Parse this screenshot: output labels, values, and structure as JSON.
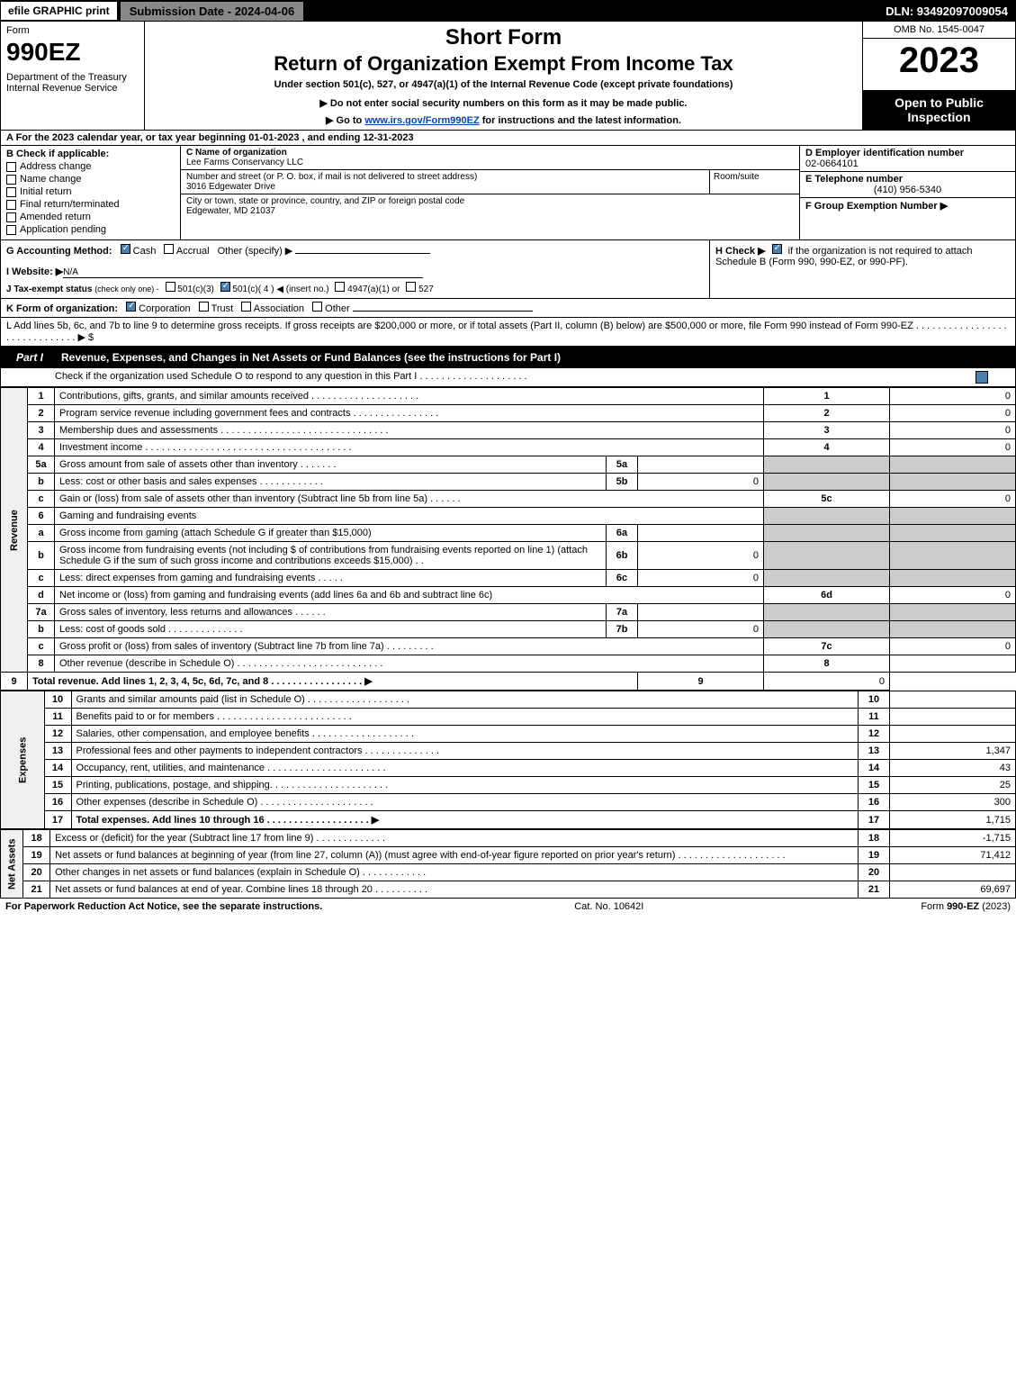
{
  "header": {
    "efile": "efile GRAPHIC print",
    "submission": "Submission Date - 2024-04-06",
    "dln": "DLN: 93492097009054"
  },
  "top": {
    "form": "Form",
    "form_num": "990EZ",
    "dept": "Department of the Treasury\nInternal Revenue Service",
    "short_form": "Short Form",
    "title": "Return of Organization Exempt From Income Tax",
    "under": "Under section 501(c), 527, or 4947(a)(1) of the Internal Revenue Code (except private foundations)",
    "notice": "▶ Do not enter social security numbers on this form as it may be made public.",
    "goto_pre": "▶ Go to ",
    "goto_link": "www.irs.gov/Form990EZ",
    "goto_post": " for instructions and the latest information.",
    "omb": "OMB No. 1545-0047",
    "year": "2023",
    "open": "Open to Public Inspection"
  },
  "line_a": "A  For the 2023 calendar year, or tax year beginning 01-01-2023  , and ending 12-31-2023",
  "b": {
    "label": "B  Check if applicable:",
    "items": [
      "Address change",
      "Name change",
      "Initial return",
      "Final return/terminated",
      "Amended return",
      "Application pending"
    ]
  },
  "c": {
    "name_label": "C Name of organization",
    "name": "Lee Farms Conservancy LLC",
    "addr_label": "Number and street (or P. O. box, if mail is not delivered to street address)",
    "addr": "3016 Edgewater Drive",
    "room_label": "Room/suite",
    "city_label": "City or town, state or province, country, and ZIP or foreign postal code",
    "city": "Edgewater, MD  21037"
  },
  "d": {
    "ein_label": "D Employer identification number",
    "ein": "02-0664101",
    "tel_label": "E Telephone number",
    "tel": "(410) 956-5340",
    "grp_label": "F Group Exemption Number  ▶"
  },
  "g": {
    "label": "G Accounting Method:",
    "cash": "Cash",
    "accrual": "Accrual",
    "other": "Other (specify) ▶"
  },
  "h": {
    "label": "H   Check ▶",
    "text": "if the organization is not required to attach Schedule B (Form 990, 990-EZ, or 990-PF)."
  },
  "i": {
    "label": "I Website: ▶",
    "val": "N/A"
  },
  "j": {
    "label": "J Tax-exempt status",
    "sub": "(check only one) -",
    "opts": [
      "501(c)(3)",
      "501(c)( 4 ) ◀ (insert no.)",
      "4947(a)(1) or",
      "527"
    ]
  },
  "k": {
    "label": "K Form of organization:",
    "opts": [
      "Corporation",
      "Trust",
      "Association",
      "Other"
    ]
  },
  "l": "L Add lines 5b, 6c, and 7b to line 9 to determine gross receipts. If gross receipts are $200,000 or more, or if total assets (Part II, column (B) below) are $500,000 or more, file Form 990 instead of Form 990-EZ  .  .  .  .  .  .  .  .  .  .  .  .  .  .  .  .  .  .  .  .  .  .  .  .  .  .  .  .  .  .  ▶ $",
  "part1": {
    "label": "Part I",
    "title": "Revenue, Expenses, and Changes in Net Assets or Fund Balances (see the instructions for Part I)",
    "sub": "Check if the organization used Schedule O to respond to any question in this Part I  .  .  .  .  .  .  .  .  .  .  .  .  .  .  .  .  .  .  .  ."
  },
  "sections": {
    "revenue": "Revenue",
    "expenses": "Expenses",
    "netassets": "Net Assets"
  },
  "rows": [
    {
      "n": "1",
      "d": "Contributions, gifts, grants, and similar amounts received  .  .  .  .  .  .  .  .  .  .  .  .  .  .  .  .  .  .  .  .",
      "bn": "1",
      "bv": "0"
    },
    {
      "n": "2",
      "d": "Program service revenue including government fees and contracts  .  .  .  .  .  .  .  .  .  .  .  .  .  .  .  .",
      "bn": "2",
      "bv": "0"
    },
    {
      "n": "3",
      "d": "Membership dues and assessments  .  .  .  .  .  .  .  .  .  .  .  .  .  .  .  .  .  .  .  .  .  .  .  .  .  .  .  .  .  .  .",
      "bn": "3",
      "bv": "0"
    },
    {
      "n": "4",
      "d": "Investment income  .  .  .  .  .  .  .  .  .  .  .  .  .  .  .  .  .  .  .  .  .  .  .  .  .  .  .  .  .  .  .  .  .  .  .  .  .  .",
      "bn": "4",
      "bv": "0"
    },
    {
      "n": "5a",
      "d": "Gross amount from sale of assets other than inventory  .  .  .  .  .  .  .",
      "sn": "5a",
      "sv": "",
      "shaded": true
    },
    {
      "n": "b",
      "d": "Less: cost or other basis and sales expenses  .  .  .  .  .  .  .  .  .  .  .  .",
      "sn": "5b",
      "sv": "0",
      "shaded": true
    },
    {
      "n": "c",
      "d": "Gain or (loss) from sale of assets other than inventory (Subtract line 5b from line 5a)   .  .  .  .  .  .",
      "bn": "5c",
      "bv": "0"
    },
    {
      "n": "6",
      "d": "Gaming and fundraising events",
      "shaded": true
    },
    {
      "n": "a",
      "d": "Gross income from gaming (attach Schedule G if greater than $15,000)",
      "sn": "6a",
      "sv": "",
      "shaded": true
    },
    {
      "n": "b",
      "d": "Gross income from fundraising events (not including $                              of contributions from fundraising events reported on line 1) (attach Schedule G if the sum of such gross income and contributions exceeds $15,000)     .   .",
      "sn": "6b",
      "sv": "0",
      "shaded": true
    },
    {
      "n": "c",
      "d": "Less: direct expenses from gaming and fundraising events    .  .  .  .  .",
      "sn": "6c",
      "sv": "0",
      "shaded": true
    },
    {
      "n": "d",
      "d": "Net income or (loss) from gaming and fundraising events (add lines 6a and 6b and subtract line 6c)",
      "bn": "6d",
      "bv": "0"
    },
    {
      "n": "7a",
      "d": "Gross sales of inventory, less returns and allowances  .  .  .  .  .  .",
      "sn": "7a",
      "sv": "",
      "shaded": true
    },
    {
      "n": "b",
      "d": "Less: cost of goods sold           .   .   .   .   .   .   .   .   .   .   .   .   .   .",
      "sn": "7b",
      "sv": "0",
      "shaded": true
    },
    {
      "n": "c",
      "d": "Gross profit or (loss) from sales of inventory (Subtract line 7b from line 7a)   .  .  .  .  .  .  .  .  .",
      "bn": "7c",
      "bv": "0"
    },
    {
      "n": "8",
      "d": "Other revenue (describe in Schedule O)  .  .  .  .  .  .  .  .  .  .  .  .  .  .  .  .  .  .  .  .  .  .  .  .  .  .  .",
      "bn": "8",
      "bv": ""
    },
    {
      "n": "9",
      "d": "Total revenue. Add lines 1, 2, 3, 4, 5c, 6d, 7c, and 8   .   .   .   .   .   .   .   .   .   .   .   .   .   .   .   .   .   ▶",
      "bn": "9",
      "bv": "0",
      "bold": true
    }
  ],
  "exp_rows": [
    {
      "n": "10",
      "d": "Grants and similar amounts paid (list in Schedule O)  .   .   .   .   .   .   .   .   .   .   .   .   .   .   .   .   .   .   .",
      "bn": "10",
      "bv": ""
    },
    {
      "n": "11",
      "d": "Benefits paid to or for members       .   .   .   .   .   .   .   .   .   .   .   .   .   .   .   .   .   .   .   .   .   .   .   .   .",
      "bn": "11",
      "bv": ""
    },
    {
      "n": "12",
      "d": "Salaries, other compensation, and employee benefits  .   .   .   .   .   .   .   .   .   .   .   .   .   .   .   .   .   .   .",
      "bn": "12",
      "bv": ""
    },
    {
      "n": "13",
      "d": "Professional fees and other payments to independent contractors  .   .   .   .   .   .   .   .   .   .   .   .   .   .",
      "bn": "13",
      "bv": "1,347"
    },
    {
      "n": "14",
      "d": "Occupancy, rent, utilities, and maintenance .   .   .   .   .   .   .   .   .   .   .   .   .   .   .   .   .   .   .   .   .   .",
      "bn": "14",
      "bv": "43"
    },
    {
      "n": "15",
      "d": "Printing, publications, postage, and shipping.   .   .   .   .   .   .   .   .   .   .   .   .   .   .   .   .   .   .   .   .   .",
      "bn": "15",
      "bv": "25"
    },
    {
      "n": "16",
      "d": "Other expenses (describe in Schedule O)      .   .   .   .   .   .   .   .   .   .   .   .   .   .   .   .   .   .   .   .   .",
      "bn": "16",
      "bv": "300"
    },
    {
      "n": "17",
      "d": "Total expenses. Add lines 10 through 16      .   .   .   .   .   .   .   .   .   .   .   .   .   .   .   .   .   .   .    ▶",
      "bn": "17",
      "bv": "1,715",
      "bold": true
    }
  ],
  "na_rows": [
    {
      "n": "18",
      "d": "Excess or (deficit) for the year (Subtract line 17 from line 9)         .   .   .   .   .   .   .   .   .   .   .   .   .",
      "bn": "18",
      "bv": "-1,715"
    },
    {
      "n": "19",
      "d": "Net assets or fund balances at beginning of year (from line 27, column (A)) (must agree with end-of-year figure reported on prior year's return) .   .   .   .   .   .   .   .   .   .   .   .   .   .   .   .   .   .   .   .",
      "bn": "19",
      "bv": "71,412"
    },
    {
      "n": "20",
      "d": "Other changes in net assets or fund balances (explain in Schedule O) .   .   .   .   .   .   .   .   .   .   .   .",
      "bn": "20",
      "bv": ""
    },
    {
      "n": "21",
      "d": "Net assets or fund balances at end of year. Combine lines 18 through 20  .   .   .   .   .   .   .   .   .   .",
      "bn": "21",
      "bv": "69,697"
    }
  ],
  "footer": {
    "left": "For Paperwork Reduction Act Notice, see the separate instructions.",
    "mid": "Cat. No. 10642I",
    "right": "Form 990-EZ (2023)"
  }
}
